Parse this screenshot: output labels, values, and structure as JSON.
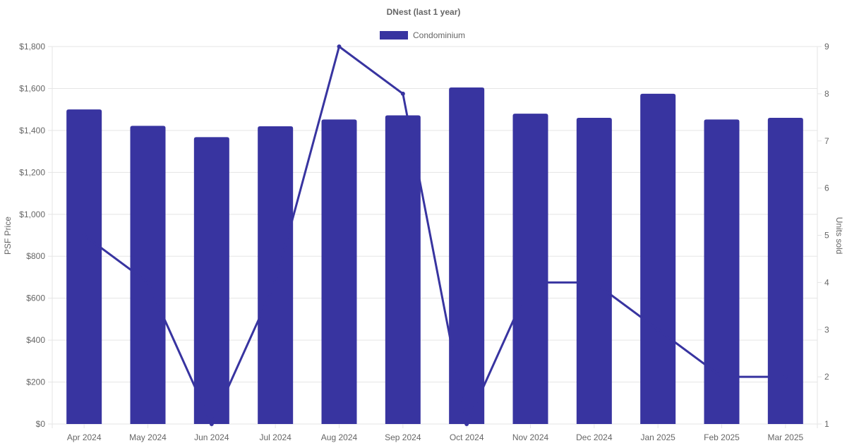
{
  "chart_data": {
    "type": "bar",
    "title": "DNest (last 1 year)",
    "legend": {
      "position": "top-center",
      "entries": [
        "Condominium"
      ]
    },
    "categories": [
      "Apr 2024",
      "May 2024",
      "Jun 2024",
      "Jul 2024",
      "Aug 2024",
      "Sep 2024",
      "Oct 2024",
      "Nov 2024",
      "Dec 2024",
      "Jan 2025",
      "Feb 2025",
      "Mar 2025"
    ],
    "series": [
      {
        "name": "Condominium",
        "type": "bar",
        "axis": "left",
        "values": [
          1500,
          1422,
          1368,
          1420,
          1452,
          1472,
          1605,
          1480,
          1460,
          1575,
          1452,
          1460
        ]
      },
      {
        "type": "line",
        "axis": "right",
        "values": [
          5,
          4,
          1,
          4,
          9,
          8,
          1,
          4,
          4,
          3,
          2,
          2
        ]
      }
    ],
    "y_left": {
      "label": "PSF Price",
      "min": 0,
      "max": 1800,
      "ticks": [
        "$0",
        "$200",
        "$400",
        "$600",
        "$800",
        "$1,000",
        "$1,200",
        "$1,400",
        "$1,600",
        "$1,800"
      ]
    },
    "y_right": {
      "label": "Units sold",
      "min": 1,
      "max": 9,
      "ticks": [
        "1",
        "2",
        "3",
        "4",
        "5",
        "6",
        "7",
        "8",
        "9"
      ]
    },
    "grid": true,
    "colors": {
      "bar": "#3834a0",
      "line": "#3834a0",
      "grid": "#e5e5e5",
      "text": "#666666",
      "title": "#666666"
    }
  }
}
